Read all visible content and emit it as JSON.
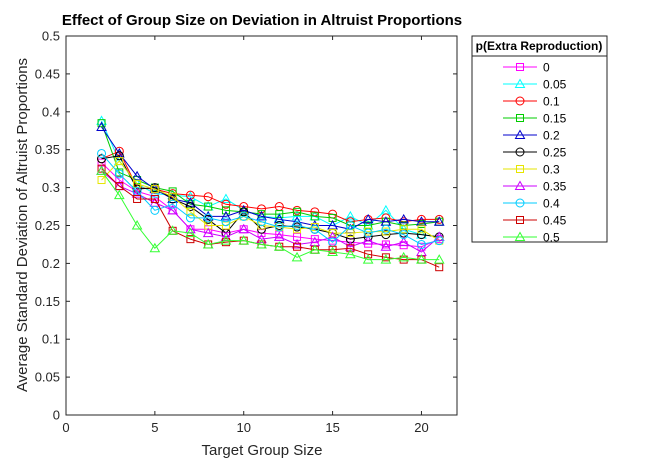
{
  "chart_data": {
    "type": "line",
    "title": "Effect of Group Size on Deviation in Altruist Proportions",
    "xlabel": "Target Group Size",
    "ylabel": "Average Standard Deviation of Altruist Proportions",
    "xlim": [
      0,
      22
    ],
    "ylim": [
      0,
      0.5
    ],
    "xticks": [
      0,
      5,
      10,
      15,
      20
    ],
    "yticks": [
      0,
      0.05,
      0.1,
      0.15,
      0.2,
      0.25,
      0.3,
      0.35,
      0.4,
      0.45,
      0.5
    ],
    "grid": false,
    "legend": {
      "title": "p(Extra Reproduction)",
      "placement": "outside-right-top"
    },
    "x": [
      2,
      3,
      4,
      5,
      6,
      7,
      8,
      9,
      10,
      11,
      12,
      13,
      14,
      15,
      16,
      17,
      18,
      19,
      20,
      21
    ],
    "series": [
      {
        "name": "0",
        "color": "#ff00ff",
        "marker": "square",
        "values": [
          0.333,
          0.31,
          0.295,
          0.288,
          0.27,
          0.245,
          0.245,
          0.24,
          0.245,
          0.24,
          0.238,
          0.235,
          0.232,
          0.23,
          0.228,
          0.226,
          0.225,
          0.224,
          0.222,
          0.232
        ]
      },
      {
        "name": "0.05",
        "color": "#00ffff",
        "marker": "triangle",
        "values": [
          0.388,
          0.335,
          0.305,
          0.292,
          0.29,
          0.288,
          0.275,
          0.285,
          0.27,
          0.262,
          0.26,
          0.262,
          0.262,
          0.25,
          0.262,
          0.25,
          0.27,
          0.245,
          0.238,
          0.235
        ]
      },
      {
        "name": "0.1",
        "color": "#ff0000",
        "marker": "circle",
        "values": [
          0.338,
          0.348,
          0.3,
          0.298,
          0.292,
          0.29,
          0.288,
          0.278,
          0.275,
          0.272,
          0.275,
          0.27,
          0.268,
          0.265,
          0.255,
          0.258,
          0.26,
          0.255,
          0.258,
          0.258
        ]
      },
      {
        "name": "0.15",
        "color": "#00cc00",
        "marker": "square",
        "values": [
          0.385,
          0.32,
          0.31,
          0.3,
          0.295,
          0.278,
          0.275,
          0.27,
          0.268,
          0.265,
          0.265,
          0.268,
          0.262,
          0.26,
          0.25,
          0.25,
          0.255,
          0.25,
          0.252,
          0.255
        ]
      },
      {
        "name": "0.2",
        "color": "#0000cc",
        "marker": "triangle",
        "values": [
          0.38,
          0.345,
          0.315,
          0.298,
          0.285,
          0.28,
          0.262,
          0.262,
          0.27,
          0.262,
          0.258,
          0.255,
          0.25,
          0.25,
          0.245,
          0.258,
          0.255,
          0.258,
          0.255,
          0.255
        ]
      },
      {
        "name": "0.25",
        "color": "#000000",
        "marker": "circle",
        "values": [
          0.338,
          0.342,
          0.298,
          0.3,
          0.285,
          0.275,
          0.258,
          0.24,
          0.268,
          0.245,
          0.25,
          0.248,
          0.245,
          0.24,
          0.232,
          0.235,
          0.238,
          0.24,
          0.238,
          0.235
        ]
      },
      {
        "name": "0.3",
        "color": "#e6e600",
        "marker": "square",
        "values": [
          0.31,
          0.335,
          0.305,
          0.298,
          0.288,
          0.268,
          0.25,
          0.25,
          0.262,
          0.25,
          0.248,
          0.245,
          0.248,
          0.24,
          0.24,
          0.242,
          0.242,
          0.245,
          0.245,
          0.23
        ]
      },
      {
        "name": "0.35",
        "color": "#cc00ff",
        "marker": "triangle",
        "values": [
          0.322,
          0.302,
          0.292,
          0.28,
          0.27,
          0.245,
          0.24,
          0.235,
          0.245,
          0.232,
          0.235,
          0.225,
          0.228,
          0.235,
          0.222,
          0.23,
          0.222,
          0.228,
          0.215,
          0.235
        ]
      },
      {
        "name": "0.4",
        "color": "#00ccff",
        "marker": "circle",
        "values": [
          0.345,
          0.318,
          0.295,
          0.27,
          0.278,
          0.26,
          0.26,
          0.255,
          0.262,
          0.255,
          0.248,
          0.25,
          0.245,
          0.228,
          0.25,
          0.24,
          0.245,
          0.238,
          0.225,
          0.23
        ]
      },
      {
        "name": "0.45",
        "color": "#cc0000",
        "marker": "square",
        "values": [
          0.325,
          0.302,
          0.285,
          0.285,
          0.243,
          0.232,
          0.225,
          0.228,
          0.23,
          0.225,
          0.222,
          0.222,
          0.218,
          0.218,
          0.22,
          0.212,
          0.208,
          0.205,
          0.205,
          0.195
        ]
      },
      {
        "name": "0.5",
        "color": "#33ff33",
        "marker": "triangle",
        "values": [
          0.322,
          0.29,
          0.25,
          0.22,
          0.243,
          0.24,
          0.225,
          0.23,
          0.23,
          0.225,
          0.222,
          0.208,
          0.218,
          0.215,
          0.212,
          0.205,
          0.205,
          0.208,
          0.205,
          0.205
        ]
      }
    ]
  }
}
